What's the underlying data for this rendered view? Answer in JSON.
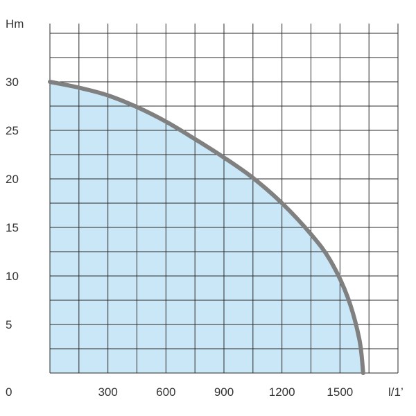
{
  "chart_data": {
    "type": "area",
    "title": "",
    "xlabel": "l/1’",
    "ylabel": "Hm",
    "origin_label": "0",
    "x_tick_labels": [
      "300",
      "600",
      "900",
      "1200",
      "1500"
    ],
    "y_tick_labels": [
      "5",
      "10",
      "15",
      "20",
      "25",
      "30"
    ],
    "xlim": [
      0,
      1800
    ],
    "ylim": [
      0,
      36
    ],
    "grid": true,
    "grid_x_step": 150,
    "grid_y_step": 2.5,
    "x_ticks": [
      300,
      600,
      900,
      1200,
      1500
    ],
    "y_ticks": [
      5,
      10,
      15,
      20,
      25,
      30
    ],
    "series": [
      {
        "x": [
          0,
          150,
          300,
          450,
          600,
          750,
          900,
          1050,
          1200,
          1350,
          1450,
          1540,
          1600,
          1620
        ],
        "y": [
          30,
          29.4,
          28.6,
          27.4,
          25.9,
          24.1,
          22.2,
          20.1,
          17.5,
          14.3,
          11.6,
          7.8,
          3.5,
          0
        ]
      }
    ],
    "colors": {
      "fill": "#c9e7f7",
      "curve": "#808080",
      "grid": "#2a2a2a"
    }
  }
}
